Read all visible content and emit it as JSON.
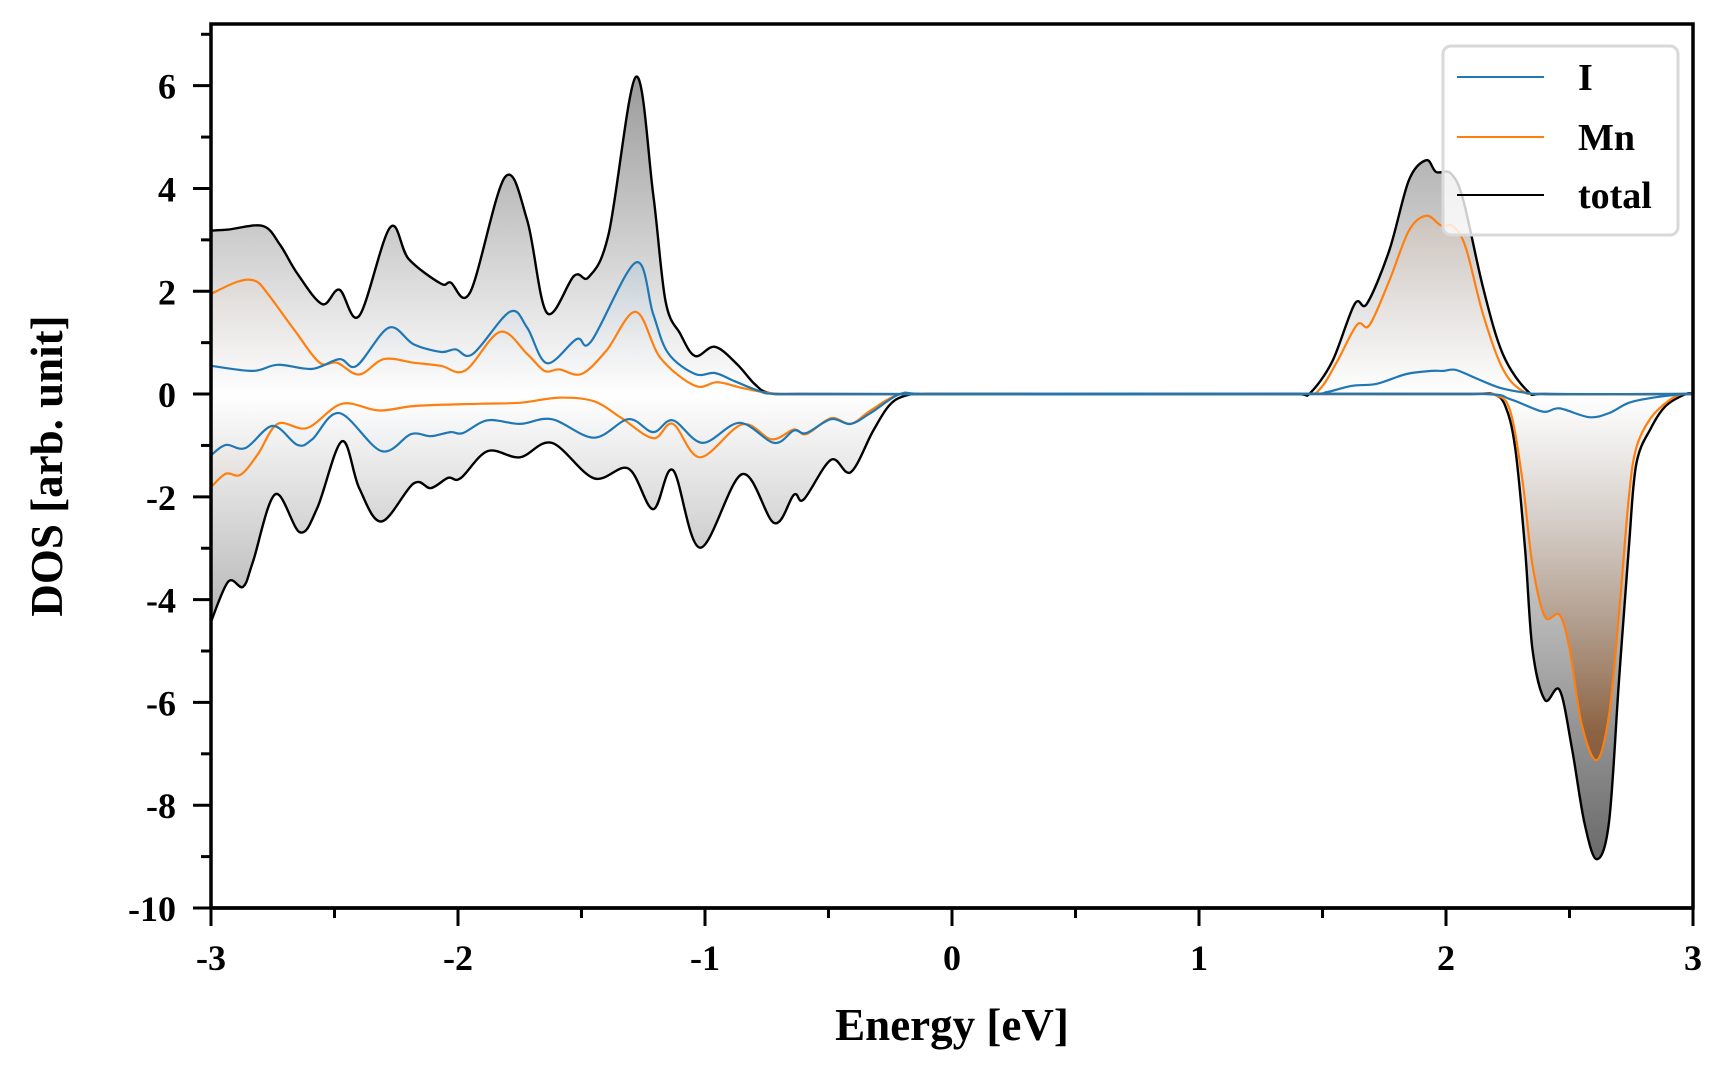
{
  "chart_data": {
    "type": "area",
    "title": "",
    "xlabel": "Energy [eV]",
    "ylabel": "DOS [arb. unit]",
    "xlim": [
      -3,
      3
    ],
    "ylim": [
      -10,
      7.2
    ],
    "xticks": [
      -3,
      -2,
      -1,
      0,
      1,
      2,
      3
    ],
    "xtick_labels": [
      "-3",
      "-2",
      "-1",
      "0",
      "1",
      "2",
      "3"
    ],
    "xminor_step": 0.5,
    "yticks": [
      -10,
      -8,
      -6,
      -4,
      -2,
      0,
      2,
      4,
      6
    ],
    "ytick_labels": [
      "-10",
      "-8",
      "-6",
      "-4",
      "-2",
      "0",
      "2",
      "4",
      "6"
    ],
    "yminor_step": 1,
    "grid": false,
    "legend": {
      "placement": "top-right",
      "entries": [
        "I",
        "Mn",
        "total"
      ]
    },
    "series": [
      {
        "name": "total",
        "color": "#000000",
        "fill": "gray",
        "up": [
          [
            -3.0,
            3.18
          ],
          [
            -2.93,
            3.2
          ],
          [
            -2.79,
            3.27
          ],
          [
            -2.72,
            2.9
          ],
          [
            -2.65,
            2.34
          ],
          [
            -2.55,
            1.75
          ],
          [
            -2.48,
            2.03
          ],
          [
            -2.4,
            1.52
          ],
          [
            -2.275,
            3.24
          ],
          [
            -2.2,
            2.63
          ],
          [
            -2.07,
            2.15
          ],
          [
            -2.03,
            2.17
          ],
          [
            -1.95,
            1.99
          ],
          [
            -1.81,
            4.22
          ],
          [
            -1.72,
            3.38
          ],
          [
            -1.64,
            1.58
          ],
          [
            -1.53,
            2.3
          ],
          [
            -1.47,
            2.28
          ],
          [
            -1.39,
            3.12
          ],
          [
            -1.28,
            6.17
          ],
          [
            -1.21,
            3.9
          ],
          [
            -1.16,
            1.81
          ],
          [
            -1.1,
            1.17
          ],
          [
            -1.04,
            0.74
          ],
          [
            -0.96,
            0.92
          ],
          [
            -0.87,
            0.58
          ],
          [
            -0.8,
            0.2
          ],
          [
            -0.74,
            0.02
          ],
          [
            -0.6,
            0.0
          ],
          [
            1.4,
            0.0
          ],
          [
            1.45,
            0.02
          ],
          [
            1.54,
            0.64
          ],
          [
            1.63,
            1.75
          ],
          [
            1.68,
            1.76
          ],
          [
            1.77,
            2.79
          ],
          [
            1.85,
            4.16
          ],
          [
            1.92,
            4.55
          ],
          [
            1.96,
            4.32
          ],
          [
            2.02,
            4.29
          ],
          [
            2.07,
            3.77
          ],
          [
            2.15,
            2.07
          ],
          [
            2.23,
            0.78
          ],
          [
            2.33,
            0.06
          ],
          [
            2.4,
            0.0
          ],
          [
            3.0,
            0.0
          ]
        ],
        "down": [
          [
            -3.0,
            -4.43
          ],
          [
            -2.93,
            -3.65
          ],
          [
            -2.87,
            -3.75
          ],
          [
            -2.83,
            -3.26
          ],
          [
            -2.74,
            -1.95
          ],
          [
            -2.64,
            -2.69
          ],
          [
            -2.57,
            -2.22
          ],
          [
            -2.47,
            -0.92
          ],
          [
            -2.4,
            -1.83
          ],
          [
            -2.31,
            -2.48
          ],
          [
            -2.18,
            -1.74
          ],
          [
            -2.11,
            -1.83
          ],
          [
            -2.04,
            -1.63
          ],
          [
            -1.99,
            -1.64
          ],
          [
            -1.88,
            -1.11
          ],
          [
            -1.75,
            -1.23
          ],
          [
            -1.62,
            -0.95
          ],
          [
            -1.45,
            -1.64
          ],
          [
            -1.31,
            -1.45
          ],
          [
            -1.21,
            -2.24
          ],
          [
            -1.13,
            -1.48
          ],
          [
            -1.02,
            -2.99
          ],
          [
            -0.85,
            -1.56
          ],
          [
            -0.72,
            -2.51
          ],
          [
            -0.64,
            -1.96
          ],
          [
            -0.6,
            -2.05
          ],
          [
            -0.49,
            -1.28
          ],
          [
            -0.41,
            -1.52
          ],
          [
            -0.32,
            -0.72
          ],
          [
            -0.25,
            -0.2
          ],
          [
            -0.18,
            -0.02
          ],
          [
            -0.1,
            0.0
          ],
          [
            2.1,
            0.0
          ],
          [
            2.19,
            0.0
          ],
          [
            2.24,
            -0.23
          ],
          [
            2.28,
            -1.05
          ],
          [
            2.32,
            -3.0
          ],
          [
            2.35,
            -4.96
          ],
          [
            2.4,
            -5.95
          ],
          [
            2.46,
            -5.76
          ],
          [
            2.51,
            -6.9
          ],
          [
            2.56,
            -8.33
          ],
          [
            2.61,
            -9.05
          ],
          [
            2.66,
            -8.33
          ],
          [
            2.7,
            -5.6
          ],
          [
            2.74,
            -3.0
          ],
          [
            2.77,
            -1.37
          ],
          [
            2.83,
            -0.66
          ],
          [
            2.89,
            -0.23
          ],
          [
            2.97,
            0.0
          ],
          [
            3.0,
            0.0
          ]
        ]
      },
      {
        "name": "Mn",
        "color": "#ff7f0e",
        "fill": "brown",
        "up": [
          [
            -3.0,
            1.95
          ],
          [
            -2.89,
            2.19
          ],
          [
            -2.82,
            2.2
          ],
          [
            -2.77,
            1.95
          ],
          [
            -2.66,
            1.23
          ],
          [
            -2.56,
            0.61
          ],
          [
            -2.49,
            0.61
          ],
          [
            -2.4,
            0.38
          ],
          [
            -2.3,
            0.68
          ],
          [
            -2.18,
            0.61
          ],
          [
            -2.07,
            0.55
          ],
          [
            -1.97,
            0.46
          ],
          [
            -1.83,
            1.21
          ],
          [
            -1.72,
            0.78
          ],
          [
            -1.65,
            0.45
          ],
          [
            -1.59,
            0.48
          ],
          [
            -1.5,
            0.39
          ],
          [
            -1.4,
            0.84
          ],
          [
            -1.28,
            1.6
          ],
          [
            -1.18,
            0.7
          ],
          [
            -1.04,
            0.16
          ],
          [
            -0.95,
            0.23
          ],
          [
            -0.85,
            0.12
          ],
          [
            -0.74,
            0.02
          ],
          [
            -0.6,
            0.0
          ],
          [
            1.42,
            0.0
          ],
          [
            1.49,
            0.1
          ],
          [
            1.56,
            0.64
          ],
          [
            1.64,
            1.35
          ],
          [
            1.69,
            1.34
          ],
          [
            1.77,
            2.2
          ],
          [
            1.85,
            3.18
          ],
          [
            1.92,
            3.47
          ],
          [
            1.98,
            3.28
          ],
          [
            2.03,
            3.26
          ],
          [
            2.08,
            2.85
          ],
          [
            2.15,
            1.55
          ],
          [
            2.23,
            0.49
          ],
          [
            2.31,
            0.06
          ],
          [
            2.4,
            0.0
          ],
          [
            3.0,
            0.0
          ]
        ],
        "down": [
          [
            -3.0,
            -1.81
          ],
          [
            -2.94,
            -1.55
          ],
          [
            -2.88,
            -1.57
          ],
          [
            -2.81,
            -1.17
          ],
          [
            -2.73,
            -0.58
          ],
          [
            -2.61,
            -0.66
          ],
          [
            -2.47,
            -0.19
          ],
          [
            -2.32,
            -0.32
          ],
          [
            -2.17,
            -0.23
          ],
          [
            -1.92,
            -0.19
          ],
          [
            -1.75,
            -0.17
          ],
          [
            -1.59,
            -0.07
          ],
          [
            -1.45,
            -0.14
          ],
          [
            -1.34,
            -0.46
          ],
          [
            -1.21,
            -0.86
          ],
          [
            -1.13,
            -0.58
          ],
          [
            -1.02,
            -1.23
          ],
          [
            -0.85,
            -0.59
          ],
          [
            -0.73,
            -0.88
          ],
          [
            -0.64,
            -0.69
          ],
          [
            -0.59,
            -0.78
          ],
          [
            -0.49,
            -0.47
          ],
          [
            -0.41,
            -0.58
          ],
          [
            -0.33,
            -0.32
          ],
          [
            -0.22,
            -0.02
          ],
          [
            -0.1,
            0.0
          ],
          [
            2.1,
            0.0
          ],
          [
            2.2,
            -0.02
          ],
          [
            2.26,
            -0.33
          ],
          [
            2.31,
            -1.7
          ],
          [
            2.35,
            -3.32
          ],
          [
            2.4,
            -4.33
          ],
          [
            2.46,
            -4.3
          ],
          [
            2.5,
            -4.95
          ],
          [
            2.55,
            -6.44
          ],
          [
            2.61,
            -7.12
          ],
          [
            2.66,
            -6.25
          ],
          [
            2.7,
            -4.3
          ],
          [
            2.74,
            -2.02
          ],
          [
            2.77,
            -1.05
          ],
          [
            2.83,
            -0.46
          ],
          [
            2.91,
            -0.1
          ],
          [
            2.96,
            0.0
          ],
          [
            3.0,
            0.0
          ]
        ]
      },
      {
        "name": "I",
        "color": "#1f77b4",
        "fill": "blue",
        "up": [
          [
            -3.0,
            0.55
          ],
          [
            -2.83,
            0.45
          ],
          [
            -2.73,
            0.57
          ],
          [
            -2.59,
            0.49
          ],
          [
            -2.48,
            0.68
          ],
          [
            -2.41,
            0.55
          ],
          [
            -2.28,
            1.29
          ],
          [
            -2.18,
            0.97
          ],
          [
            -2.07,
            0.82
          ],
          [
            -2.01,
            0.87
          ],
          [
            -1.94,
            0.78
          ],
          [
            -1.79,
            1.6
          ],
          [
            -1.72,
            1.29
          ],
          [
            -1.64,
            0.6
          ],
          [
            -1.52,
            1.07
          ],
          [
            -1.46,
            1.03
          ],
          [
            -1.28,
            2.56
          ],
          [
            -1.21,
            1.56
          ],
          [
            -1.15,
            0.8
          ],
          [
            -1.04,
            0.39
          ],
          [
            -0.96,
            0.41
          ],
          [
            -0.88,
            0.25
          ],
          [
            -0.78,
            0.06
          ],
          [
            -0.7,
            0.0
          ],
          [
            1.45,
            0.0
          ],
          [
            1.52,
            0.04
          ],
          [
            1.62,
            0.16
          ],
          [
            1.72,
            0.2
          ],
          [
            1.84,
            0.39
          ],
          [
            1.94,
            0.45
          ],
          [
            1.99,
            0.45
          ],
          [
            2.04,
            0.47
          ],
          [
            2.12,
            0.31
          ],
          [
            2.22,
            0.12
          ],
          [
            2.33,
            0.02
          ],
          [
            2.4,
            0.0
          ],
          [
            3.0,
            0.0
          ]
        ],
        "down": [
          [
            -3.0,
            -1.19
          ],
          [
            -2.94,
            -0.99
          ],
          [
            -2.86,
            -1.05
          ],
          [
            -2.75,
            -0.62
          ],
          [
            -2.65,
            -0.99
          ],
          [
            -2.59,
            -0.88
          ],
          [
            -2.48,
            -0.37
          ],
          [
            -2.31,
            -1.11
          ],
          [
            -2.19,
            -0.78
          ],
          [
            -2.11,
            -0.82
          ],
          [
            -2.03,
            -0.74
          ],
          [
            -1.98,
            -0.76
          ],
          [
            -1.88,
            -0.51
          ],
          [
            -1.75,
            -0.58
          ],
          [
            -1.62,
            -0.49
          ],
          [
            -1.45,
            -0.85
          ],
          [
            -1.31,
            -0.49
          ],
          [
            -1.21,
            -0.74
          ],
          [
            -1.13,
            -0.51
          ],
          [
            -1.01,
            -0.95
          ],
          [
            -0.86,
            -0.56
          ],
          [
            -0.72,
            -0.95
          ],
          [
            -0.64,
            -0.71
          ],
          [
            -0.59,
            -0.76
          ],
          [
            -0.49,
            -0.49
          ],
          [
            -0.41,
            -0.58
          ],
          [
            -0.33,
            -0.37
          ],
          [
            -0.21,
            0.0
          ],
          [
            -0.1,
            0.0
          ],
          [
            2.15,
            0.0
          ],
          [
            2.26,
            -0.1
          ],
          [
            2.39,
            -0.34
          ],
          [
            2.46,
            -0.28
          ],
          [
            2.58,
            -0.45
          ],
          [
            2.66,
            -0.37
          ],
          [
            2.74,
            -0.17
          ],
          [
            2.84,
            -0.07
          ],
          [
            2.96,
            0.0
          ],
          [
            3.0,
            0.0
          ]
        ]
      }
    ]
  }
}
